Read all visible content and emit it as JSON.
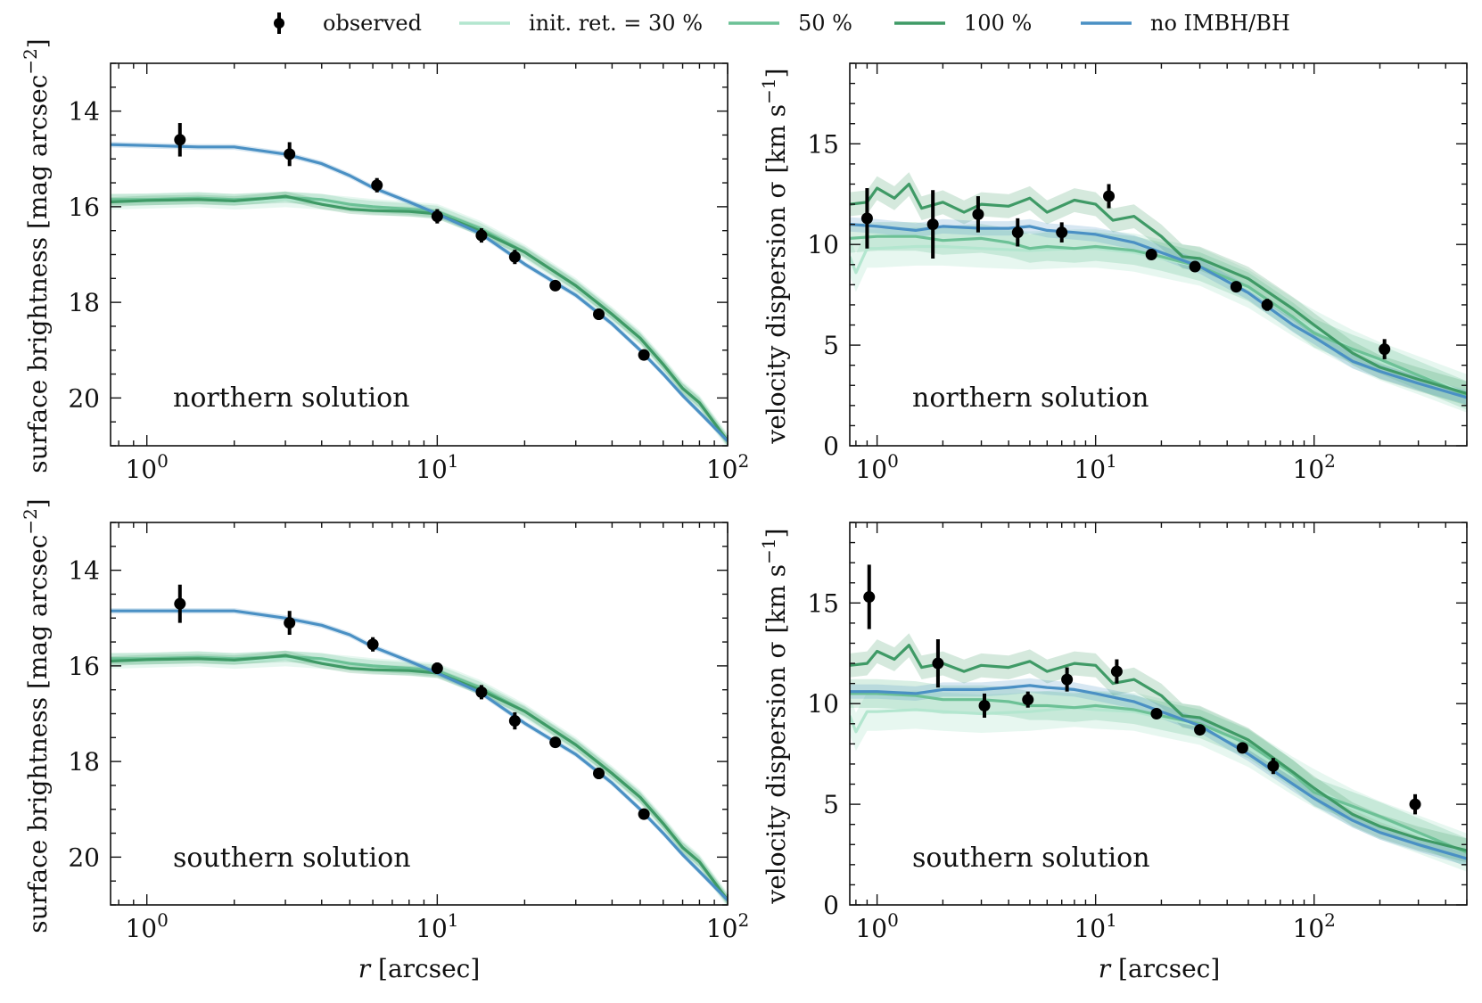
{
  "legend": {
    "observed": "observed",
    "ret30": "init. ret. = 30 %",
    "ret50": "50 %",
    "ret100": "100 %",
    "noimbh": "no IMBH/BH"
  },
  "series_colors": {
    "observed": "#000000",
    "ret30": "#b3e6cf",
    "ret50": "#6cc196",
    "ret100": "#3f9a66",
    "noimbh": "#4a90c4"
  },
  "labels": {
    "sb_ylabel": "surface brightness [mag arcsec",
    "sb_ylabel_sup": "−2",
    "sb_ylabel_end": "]",
    "vd_ylabel": "velocity dispersion σ [km s",
    "vd_ylabel_sup": "−1",
    "vd_ylabel_end": "]",
    "xlabel_r": "r",
    "xlabel_unit": " [arcsec]",
    "north": "northern solution",
    "south": "southern solution"
  },
  "chart_data": [
    {
      "id": "sb_north",
      "type": "line",
      "title": "northern solution",
      "ylabel": "surface brightness [mag arcsec^-2]",
      "xscale": "log",
      "xlim": [
        0.75,
        100
      ],
      "ylim": [
        21.0,
        13.0
      ],
      "yinverted": true,
      "xticks": [
        1,
        10,
        100
      ],
      "xtick_labels": [
        [
          "10",
          "0"
        ],
        [
          "10",
          "1"
        ],
        [
          "10",
          "2"
        ]
      ],
      "yticks": [
        14,
        16,
        18,
        20
      ],
      "observed": [
        {
          "x": 1.3,
          "y": 14.6,
          "err": 0.35
        },
        {
          "x": 3.1,
          "y": 14.9,
          "err": 0.25
        },
        {
          "x": 6.2,
          "y": 15.55,
          "err": 0.15
        },
        {
          "x": 10.0,
          "y": 16.2,
          "err": 0.15
        },
        {
          "x": 14.2,
          "y": 16.6,
          "err": 0.15
        },
        {
          "x": 18.5,
          "y": 17.05,
          "err": 0.15
        },
        {
          "x": 25.5,
          "y": 17.65,
          "err": 0.08
        },
        {
          "x": 36.0,
          "y": 18.25,
          "err": 0.12
        },
        {
          "x": 51.5,
          "y": 19.1,
          "err": 0.08
        }
      ],
      "series": [
        {
          "name": "init. ret. = 30 %",
          "key": "ret30",
          "x": [
            0.75,
            1,
            1.5,
            2,
            3,
            4,
            5,
            6,
            8,
            10,
            14,
            20,
            30,
            40,
            50,
            60,
            70,
            80,
            100
          ],
          "y": [
            15.9,
            15.88,
            15.85,
            15.9,
            15.85,
            15.9,
            15.95,
            16.0,
            16.05,
            16.1,
            16.45,
            16.95,
            17.65,
            18.25,
            18.75,
            19.3,
            19.8,
            20.1,
            20.9
          ]
        },
        {
          "name": "50 %",
          "key": "ret50",
          "x": [
            0.75,
            1,
            1.5,
            2,
            3,
            4,
            5,
            6,
            8,
            10,
            14,
            20,
            30,
            40,
            50,
            60,
            70,
            80,
            100
          ],
          "y": [
            15.85,
            15.85,
            15.82,
            15.85,
            15.8,
            15.85,
            15.95,
            16.0,
            16.05,
            16.1,
            16.45,
            16.95,
            17.65,
            18.25,
            18.75,
            19.3,
            19.8,
            20.1,
            20.9
          ]
        },
        {
          "name": "100 %",
          "key": "ret100",
          "x": [
            0.75,
            1,
            1.5,
            2,
            2.5,
            3,
            4,
            5,
            6,
            8,
            10,
            14,
            20,
            30,
            40,
            50,
            60,
            70,
            80,
            100
          ],
          "y": [
            15.9,
            15.87,
            15.85,
            15.88,
            15.83,
            15.78,
            15.95,
            16.05,
            16.08,
            16.1,
            16.15,
            16.5,
            16.95,
            17.65,
            18.25,
            18.75,
            19.3,
            19.8,
            20.1,
            20.9
          ]
        },
        {
          "name": "no IMBH/BH",
          "key": "noimbh",
          "x": [
            0.75,
            1,
            1.5,
            2,
            3,
            4,
            5,
            6,
            8,
            10,
            14,
            20,
            30,
            40,
            50,
            60,
            70,
            80,
            100
          ],
          "y": [
            14.7,
            14.72,
            14.75,
            14.75,
            14.9,
            15.1,
            15.35,
            15.6,
            15.9,
            16.15,
            16.55,
            17.2,
            17.85,
            18.45,
            19.0,
            19.5,
            19.95,
            20.3,
            20.9
          ]
        }
      ]
    },
    {
      "id": "vd_north",
      "type": "line",
      "title": "northern solution",
      "ylabel": "velocity dispersion σ [km s^-1]",
      "xscale": "log",
      "xlim": [
        0.75,
        500
      ],
      "ylim": [
        0,
        19
      ],
      "xticks": [
        1,
        10,
        100
      ],
      "xtick_labels": [
        [
          "10",
          "0"
        ],
        [
          "10",
          "1"
        ],
        [
          "10",
          "2"
        ]
      ],
      "yticks": [
        0,
        5,
        10,
        15
      ],
      "observed": [
        {
          "x": 0.9,
          "y": 11.3,
          "err": 1.5
        },
        {
          "x": 1.8,
          "y": 11.0,
          "err": 1.7
        },
        {
          "x": 2.9,
          "y": 11.5,
          "err": 0.9
        },
        {
          "x": 4.4,
          "y": 10.6,
          "err": 0.7
        },
        {
          "x": 7.0,
          "y": 10.6,
          "err": 0.5
        },
        {
          "x": 11.5,
          "y": 12.4,
          "err": 0.6
        },
        {
          "x": 18.0,
          "y": 9.5,
          "err": 0.2
        },
        {
          "x": 28.5,
          "y": 8.9,
          "err": 0.2
        },
        {
          "x": 44.0,
          "y": 7.9,
          "err": 0.2
        },
        {
          "x": 61.0,
          "y": 7.0,
          "err": 0.3
        },
        {
          "x": 210.0,
          "y": 4.8,
          "err": 0.5
        }
      ],
      "series": [
        {
          "name": "init. ret. = 30 %",
          "key": "ret30",
          "x": [
            0.75,
            0.8,
            0.9,
            1,
            1.5,
            2,
            3,
            5,
            8,
            10,
            15,
            20,
            30,
            50,
            80,
            100,
            150,
            200,
            300,
            500
          ],
          "y": [
            9.4,
            8.6,
            9.8,
            9.8,
            9.9,
            9.9,
            9.8,
            9.7,
            9.8,
            9.8,
            9.6,
            9.3,
            8.9,
            7.8,
            6.4,
            5.8,
            4.8,
            4.2,
            3.5,
            2.6
          ]
        },
        {
          "name": "50 %",
          "key": "ret50",
          "x": [
            0.75,
            1,
            1.5,
            2,
            3,
            4,
            5,
            6,
            8,
            10,
            15,
            20,
            30,
            50,
            80,
            100,
            150,
            200,
            300,
            500
          ],
          "y": [
            10.3,
            10.4,
            10.4,
            10.2,
            10.3,
            10.1,
            9.8,
            9.9,
            9.8,
            9.9,
            9.7,
            9.4,
            8.9,
            7.9,
            6.4,
            5.6,
            4.8,
            4.3,
            3.5,
            2.5
          ]
        },
        {
          "name": "100 %",
          "key": "ret100",
          "x": [
            0.75,
            0.9,
            1,
            1.2,
            1.4,
            1.6,
            2,
            2.5,
            3,
            4,
            5,
            6,
            8,
            10,
            12,
            15,
            20,
            25,
            30,
            50,
            80,
            100,
            150,
            200,
            300,
            500
          ],
          "y": [
            12.0,
            12.1,
            12.8,
            12.3,
            13.0,
            11.8,
            12.1,
            11.6,
            12.0,
            11.9,
            12.3,
            11.6,
            12.2,
            12.0,
            11.2,
            11.4,
            10.4,
            9.4,
            9.3,
            8.3,
            6.8,
            6.0,
            4.6,
            3.9,
            3.3,
            2.6
          ]
        },
        {
          "name": "no IMBH/BH",
          "key": "noimbh",
          "x": [
            0.75,
            1,
            1.5,
            2,
            3,
            4,
            5,
            6,
            8,
            10,
            15,
            20,
            30,
            50,
            80,
            100,
            150,
            200,
            300,
            500
          ],
          "y": [
            11.0,
            10.9,
            10.7,
            10.9,
            10.8,
            10.8,
            10.9,
            10.7,
            10.6,
            10.5,
            10.1,
            9.6,
            8.9,
            7.6,
            6.0,
            5.4,
            4.2,
            3.7,
            3.1,
            2.4
          ]
        }
      ]
    },
    {
      "id": "sb_south",
      "type": "line",
      "title": "southern solution",
      "ylabel": "surface brightness [mag arcsec^-2]",
      "xscale": "log",
      "xlim": [
        0.75,
        100
      ],
      "ylim": [
        21.0,
        13.0
      ],
      "yinverted": true,
      "xticks": [
        1,
        10,
        100
      ],
      "xtick_labels": [
        [
          "10",
          "0"
        ],
        [
          "10",
          "1"
        ],
        [
          "10",
          "2"
        ]
      ],
      "yticks": [
        14,
        16,
        18,
        20
      ],
      "observed": [
        {
          "x": 1.3,
          "y": 14.7,
          "err": 0.4
        },
        {
          "x": 3.1,
          "y": 15.1,
          "err": 0.25
        },
        {
          "x": 6.0,
          "y": 15.55,
          "err": 0.15
        },
        {
          "x": 10.0,
          "y": 16.05,
          "err": 0.12
        },
        {
          "x": 14.2,
          "y": 16.55,
          "err": 0.15
        },
        {
          "x": 18.5,
          "y": 17.15,
          "err": 0.18
        },
        {
          "x": 25.5,
          "y": 17.6,
          "err": 0.08
        },
        {
          "x": 36.0,
          "y": 18.25,
          "err": 0.12
        },
        {
          "x": 51.5,
          "y": 19.1,
          "err": 0.08
        }
      ],
      "series": [
        {
          "name": "init. ret. = 30 %",
          "key": "ret30",
          "x": [
            0.75,
            1,
            1.5,
            2,
            3,
            4,
            5,
            6,
            8,
            10,
            14,
            20,
            30,
            40,
            50,
            60,
            70,
            80,
            100
          ],
          "y": [
            15.9,
            15.88,
            15.85,
            15.9,
            15.85,
            15.9,
            15.95,
            16.0,
            16.05,
            16.1,
            16.45,
            16.95,
            17.65,
            18.25,
            18.75,
            19.3,
            19.8,
            20.1,
            20.9
          ]
        },
        {
          "name": "50 %",
          "key": "ret50",
          "x": [
            0.75,
            1,
            1.5,
            2,
            3,
            4,
            5,
            6,
            8,
            10,
            14,
            20,
            30,
            40,
            50,
            60,
            70,
            80,
            100
          ],
          "y": [
            15.85,
            15.85,
            15.82,
            15.85,
            15.8,
            15.85,
            15.95,
            16.0,
            16.05,
            16.1,
            16.45,
            16.95,
            17.65,
            18.25,
            18.75,
            19.3,
            19.8,
            20.1,
            20.9
          ]
        },
        {
          "name": "100 %",
          "key": "ret100",
          "x": [
            0.75,
            1,
            1.5,
            2,
            2.5,
            3,
            4,
            5,
            6,
            8,
            10,
            14,
            20,
            30,
            40,
            50,
            60,
            70,
            80,
            100
          ],
          "y": [
            15.9,
            15.87,
            15.85,
            15.88,
            15.83,
            15.78,
            15.95,
            16.05,
            16.08,
            16.1,
            16.15,
            16.5,
            16.95,
            17.65,
            18.25,
            18.75,
            19.3,
            19.8,
            20.1,
            20.9
          ]
        },
        {
          "name": "no IMBH/BH",
          "key": "noimbh",
          "x": [
            0.75,
            1,
            1.5,
            2,
            3,
            4,
            5,
            6,
            8,
            10,
            14,
            20,
            30,
            40,
            50,
            60,
            70,
            80,
            100
          ],
          "y": [
            14.85,
            14.85,
            14.85,
            14.85,
            15.0,
            15.15,
            15.35,
            15.6,
            15.9,
            16.15,
            16.55,
            17.2,
            17.85,
            18.45,
            19.0,
            19.5,
            19.95,
            20.3,
            20.9
          ]
        }
      ]
    },
    {
      "id": "vd_south",
      "type": "line",
      "title": "southern solution",
      "ylabel": "velocity dispersion σ [km s^-1]",
      "xscale": "log",
      "xlim": [
        0.75,
        500
      ],
      "ylim": [
        0,
        19
      ],
      "xticks": [
        1,
        10,
        100
      ],
      "xtick_labels": [
        [
          "10",
          "0"
        ],
        [
          "10",
          "1"
        ],
        [
          "10",
          "2"
        ]
      ],
      "yticks": [
        0,
        5,
        10,
        15
      ],
      "observed": [
        {
          "x": 0.92,
          "y": 15.3,
          "err": 1.6
        },
        {
          "x": 1.9,
          "y": 12.0,
          "err": 1.2
        },
        {
          "x": 3.1,
          "y": 9.9,
          "err": 0.6
        },
        {
          "x": 4.9,
          "y": 10.2,
          "err": 0.4
        },
        {
          "x": 7.4,
          "y": 11.2,
          "err": 0.6
        },
        {
          "x": 12.5,
          "y": 11.6,
          "err": 0.6
        },
        {
          "x": 19.0,
          "y": 9.5,
          "err": 0.2
        },
        {
          "x": 30.0,
          "y": 8.7,
          "err": 0.2
        },
        {
          "x": 47.0,
          "y": 7.8,
          "err": 0.2
        },
        {
          "x": 65.0,
          "y": 6.9,
          "err": 0.4
        },
        {
          "x": 290.0,
          "y": 5.0,
          "err": 0.5
        }
      ],
      "series": [
        {
          "name": "init. ret. = 30 %",
          "key": "ret30",
          "x": [
            0.75,
            0.8,
            0.9,
            1,
            1.5,
            2,
            3,
            5,
            8,
            10,
            15,
            20,
            30,
            50,
            80,
            100,
            150,
            200,
            300,
            500
          ],
          "y": [
            9.4,
            8.6,
            9.6,
            9.6,
            9.7,
            9.6,
            9.5,
            9.6,
            9.8,
            9.7,
            9.6,
            9.3,
            8.9,
            7.8,
            6.4,
            5.8,
            4.8,
            4.2,
            3.5,
            2.6
          ]
        },
        {
          "name": "50 %",
          "key": "ret50",
          "x": [
            0.75,
            1,
            1.5,
            2,
            3,
            4,
            5,
            6,
            8,
            10,
            15,
            20,
            30,
            50,
            80,
            100,
            150,
            200,
            300,
            500
          ],
          "y": [
            10.5,
            10.5,
            10.4,
            10.2,
            10.2,
            10.1,
            9.9,
            9.9,
            9.8,
            9.9,
            9.7,
            9.4,
            9.0,
            8.0,
            6.5,
            5.6,
            4.9,
            4.4,
            3.6,
            2.6
          ]
        },
        {
          "name": "100 %",
          "key": "ret100",
          "x": [
            0.75,
            0.9,
            1,
            1.2,
            1.4,
            1.6,
            2,
            2.5,
            3,
            4,
            5,
            6,
            8,
            10,
            12,
            15,
            20,
            25,
            30,
            50,
            80,
            100,
            150,
            200,
            300,
            500
          ],
          "y": [
            11.9,
            12.0,
            12.6,
            12.2,
            12.9,
            11.8,
            12.0,
            11.6,
            11.9,
            11.8,
            12.1,
            11.6,
            12.0,
            11.9,
            11.0,
            11.2,
            10.4,
            9.4,
            9.3,
            8.2,
            6.6,
            5.8,
            4.5,
            3.9,
            3.3,
            2.7
          ]
        },
        {
          "name": "no IMBH/BH",
          "key": "noimbh",
          "x": [
            0.75,
            1,
            1.5,
            2,
            3,
            4,
            5,
            6,
            8,
            10,
            15,
            20,
            30,
            50,
            80,
            100,
            150,
            200,
            300,
            500
          ],
          "y": [
            10.6,
            10.6,
            10.5,
            10.7,
            10.7,
            10.8,
            10.9,
            10.8,
            10.7,
            10.5,
            10.1,
            9.6,
            8.9,
            7.5,
            6.0,
            5.3,
            4.2,
            3.6,
            3.0,
            2.3
          ]
        }
      ]
    }
  ]
}
